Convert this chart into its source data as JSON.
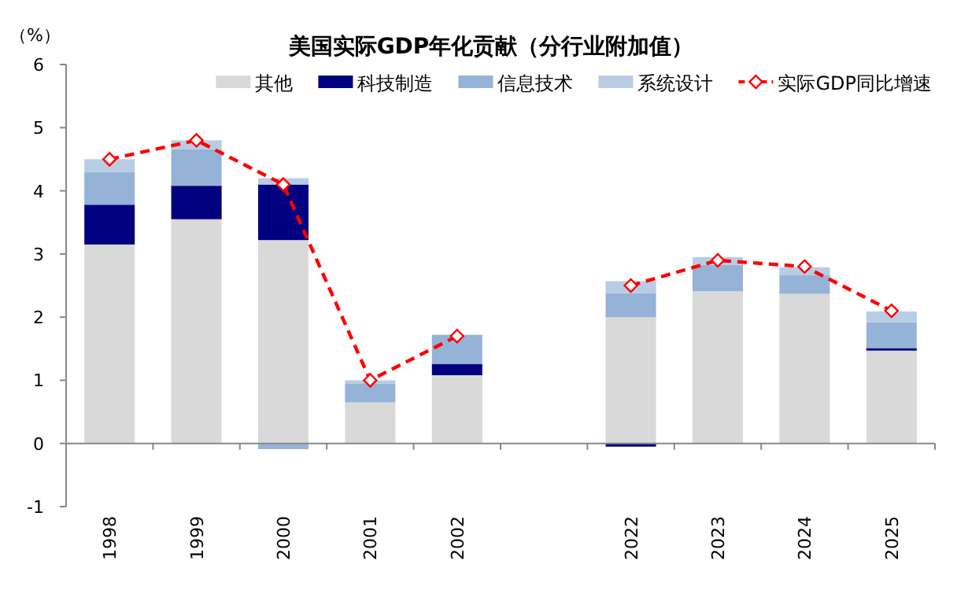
{
  "chart_data": {
    "type": "bar",
    "stacked": true,
    "title": "美国实际GDP年化贡献（分行业附加值）",
    "ylabel": "（%）",
    "categories": [
      "1998",
      "1999",
      "2000",
      "2001",
      "2002",
      null,
      "2022",
      "2023",
      "2024",
      "2025"
    ],
    "ylim": [
      -1,
      6
    ],
    "yticks": [
      -1,
      0,
      1,
      2,
      3,
      4,
      5,
      6
    ],
    "legend": "top",
    "series": [
      {
        "name": "其他",
        "color": "#d9d9d9",
        "values": [
          3.15,
          3.55,
          3.22,
          0.65,
          1.08,
          null,
          2.0,
          2.41,
          2.37,
          1.47
        ]
      },
      {
        "name": "科技制造",
        "color": "#000080",
        "values": [
          0.63,
          0.53,
          0.88,
          0.0,
          0.18,
          null,
          -0.05,
          null,
          0.0,
          0.04
        ]
      },
      {
        "name": "信息技术",
        "color": "#95b3d7",
        "values": [
          0.52,
          0.58,
          -0.09,
          0.3,
          0.46,
          null,
          0.38,
          0.42,
          0.3,
          0.41
        ]
      },
      {
        "name": "系统设计",
        "color": "#b8cce4",
        "values": [
          0.2,
          0.14,
          0.1,
          0.05,
          null,
          null,
          0.19,
          0.12,
          0.12,
          0.17
        ]
      },
      {
        "name": "实际GDP同比增速",
        "type": "line",
        "color": "#ff0000",
        "line_style": "dashed",
        "marker": "diamond",
        "values": [
          4.5,
          4.8,
          4.1,
          1.0,
          1.7,
          null,
          2.5,
          2.9,
          2.8,
          2.1
        ]
      }
    ]
  }
}
